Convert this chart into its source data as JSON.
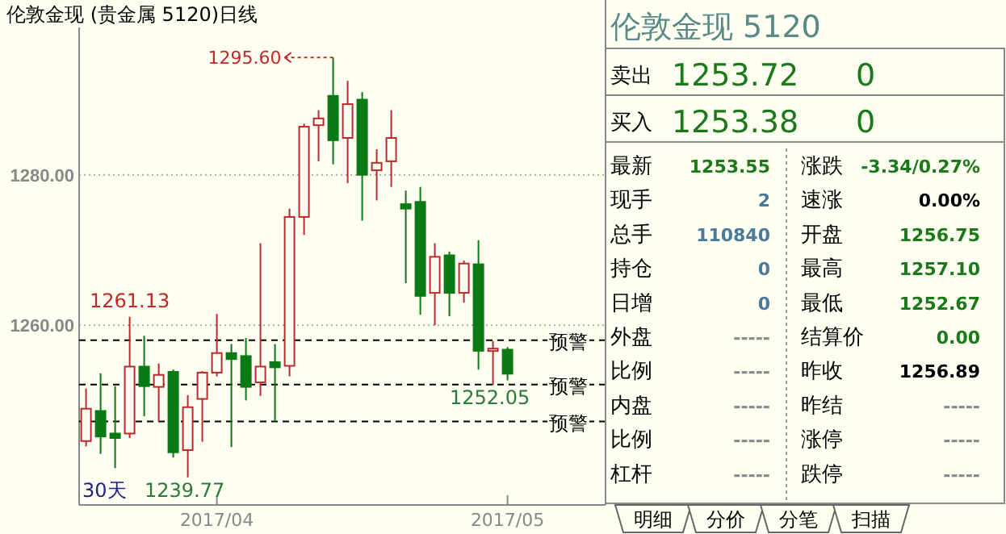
{
  "chart_data": [
    {
      "type": "candlestick",
      "title": "伦敦金现 (贵金属 5120)日线",
      "categories": [
        null,
        null,
        null,
        null,
        null,
        null,
        null,
        null,
        null,
        "2017/04",
        null,
        null,
        null,
        null,
        null,
        null,
        null,
        null,
        null,
        null,
        null,
        null,
        null,
        null,
        null,
        null,
        null,
        null,
        null,
        "2017/05"
      ],
      "ohlc": [
        [
          1244.6,
          1251.6,
          1243.9,
          1248.9
        ],
        [
          1248.6,
          1253.6,
          1242.9,
          1245.2
        ],
        [
          1245.6,
          1251.9,
          1241.0,
          1245.0
        ],
        [
          1245.6,
          1261.13,
          1245.0,
          1254.5
        ],
        [
          1254.5,
          1258.6,
          1247.9,
          1251.9
        ],
        [
          1251.8,
          1254.9,
          1247.2,
          1253.4
        ],
        [
          1253.8,
          1254.1,
          1242.4,
          1243.1
        ],
        [
          1243.4,
          1250.7,
          1239.77,
          1249.1
        ],
        [
          1250.2,
          1253.9,
          1244.5,
          1253.7
        ],
        [
          1253.7,
          1261.5,
          1253.2,
          1256.3
        ],
        [
          1256.3,
          1257.5,
          1243.8,
          1255.5
        ],
        [
          1255.9,
          1258.3,
          1250.0,
          1251.8
        ],
        [
          1252.4,
          1270.9,
          1250.6,
          1254.5
        ],
        [
          1255.1,
          1257.5,
          1247.2,
          1254.4
        ],
        [
          1254.6,
          1275.5,
          1253.2,
          1274.4
        ],
        [
          1274.4,
          1286.8,
          1272.0,
          1286.4
        ],
        [
          1286.6,
          1288.6,
          1281.8,
          1287.5
        ],
        [
          1290.5,
          1295.6,
          1281.4,
          1284.6
        ],
        [
          1284.9,
          1292.5,
          1278.9,
          1289.4
        ],
        [
          1290.0,
          1291.0,
          1273.9,
          1280.0
        ],
        [
          1280.6,
          1283.4,
          1276.6,
          1281.6
        ],
        [
          1281.8,
          1288.6,
          1278.4,
          1284.9
        ],
        [
          1276.1,
          1277.9,
          1265.6,
          1275.5
        ],
        [
          1276.4,
          1278.4,
          1261.4,
          1263.9
        ],
        [
          1264.3,
          1270.9,
          1260.0,
          1269.1
        ],
        [
          1269.3,
          1269.8,
          1261.2,
          1264.3
        ],
        [
          1264.3,
          1268.6,
          1263.0,
          1268.2
        ],
        [
          1268.1,
          1271.3,
          1254.1,
          1256.6
        ],
        [
          1256.6,
          1257.9,
          1252.05,
          1256.89
        ],
        [
          1256.75,
          1257.1,
          1252.67,
          1253.55
        ]
      ],
      "ylim": [
        1236.1,
        1299.6
      ],
      "yticks": [
        {
          "value": 1280,
          "label": "1280.00"
        },
        {
          "value": 1260,
          "label": "1260.00"
        }
      ],
      "grid": "y",
      "ref_lines": [
        {
          "axis": "y",
          "value": 1258.0,
          "label": "预警",
          "color": "#000000",
          "line_style": "dashed"
        },
        {
          "axis": "y",
          "value": 1252.1,
          "label": "预警",
          "color": "#000000",
          "line_style": "dashed"
        },
        {
          "axis": "y",
          "value": 1247.2,
          "label": "预警",
          "color": "#000000",
          "line_style": "dashed"
        }
      ],
      "annotations": [
        "1295.60",
        "1261.13",
        "1239.77",
        "1252.05",
        "30天"
      ]
    },
    {
      "type": "other",
      "title": "伦敦金现  5120",
      "annotations": [
        "卖出",
        "1253.72",
        "0",
        "买入",
        "1253.38",
        "0",
        "最新",
        "1253.55",
        "涨跌",
        "-3.34/0.27%",
        "现手",
        "2",
        "速涨",
        "0.00%",
        "总手",
        "110840",
        "开盘",
        "1256.75",
        "持仓",
        "0",
        "最高",
        "1257.10",
        "日增",
        "0",
        "最低",
        "1252.67",
        "外盘",
        "-----",
        "结算价",
        "0.00",
        "比例",
        "-----",
        "昨收",
        "1256.89",
        "内盘",
        "-----",
        "昨结",
        "-----",
        "比例",
        "-----",
        "涨停",
        "-----",
        "杠杆",
        "-----",
        "跌停",
        "-----",
        "明细",
        "分价",
        "分笔",
        "扫描"
      ]
    }
  ]
}
